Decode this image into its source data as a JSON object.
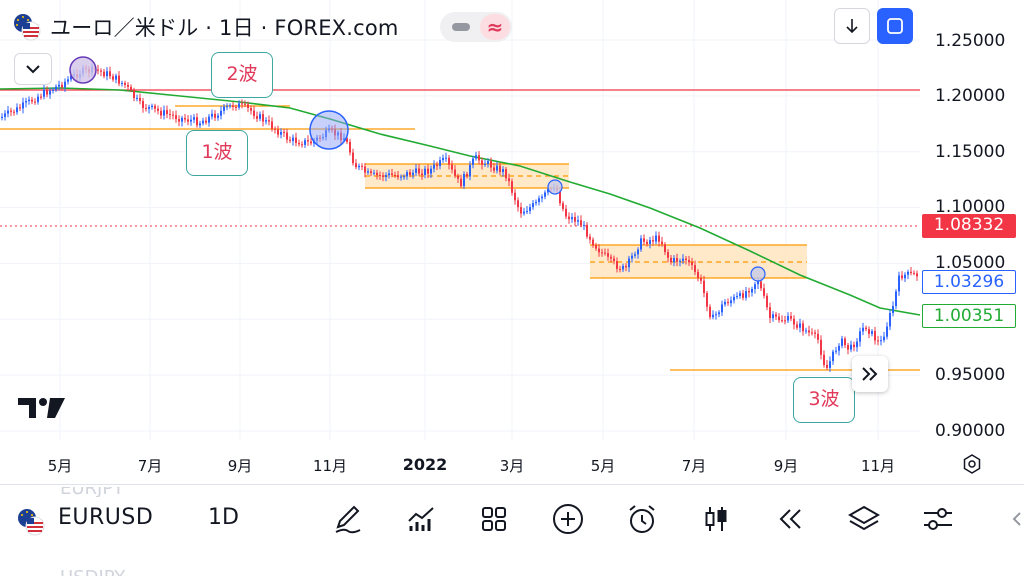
{
  "header": {
    "title": "ユーロ／米ドル · 1日 · FOREX.com",
    "compare_symbol": "≈"
  },
  "icons": {
    "flag": "eur-usd-flag-icon",
    "download": "arrow-down-icon",
    "fullscreen": "fullscreen-icon",
    "collapse": "chevron-down-icon"
  },
  "price_axis": {
    "labels": [
      "1.25000",
      "1.20000",
      "1.15000",
      "1.10000",
      "1.05000",
      "0.95000",
      "0.90000"
    ],
    "current_price": "1.08332",
    "blue_price": "1.03296",
    "ma_price": "1.00351"
  },
  "time_axis": {
    "labels": [
      "5月",
      "7月",
      "9月",
      "11月",
      "2022",
      "3月",
      "5月",
      "7月",
      "9月",
      "11月"
    ]
  },
  "annotations": {
    "wave1": "1波",
    "wave2": "2波",
    "wave3": "3波"
  },
  "colors": {
    "up_candle": "#2962ff",
    "down_candle": "#f23645",
    "ma_line": "#22ab33",
    "horizontal_red": "#f23645",
    "horizontal_orange": "#ff9800",
    "zone_fill": "#ffe0b2",
    "annotation_border": "#3da6a0"
  },
  "toolbar": {
    "ghost_above": "EURJPY",
    "symbol": "EURUSD",
    "interval": "1D",
    "ghost_below": "USDJPY",
    "tools": [
      "draw-pen-icon",
      "indicators-icon",
      "templates-grid-icon",
      "add-plus-icon",
      "alert-clock-icon",
      "candles-chart-type-icon",
      "replay-icon",
      "layers-icon",
      "settings-sliders-icon"
    ]
  }
}
